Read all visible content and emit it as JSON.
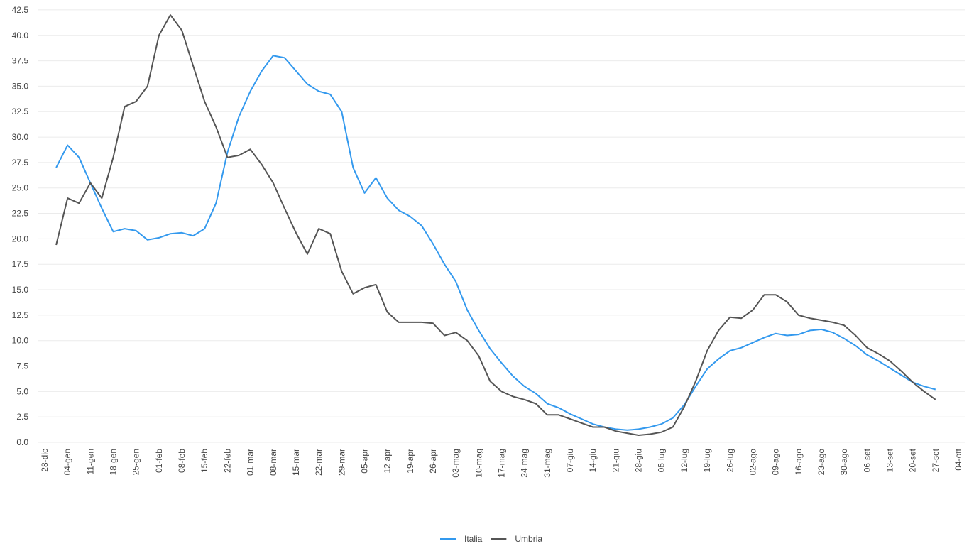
{
  "chart_data": {
    "type": "line",
    "categories": [
      "28-dic",
      null,
      "04-gen",
      null,
      "11-gen",
      null,
      "18-gen",
      null,
      "25-gen",
      null,
      "01-feb",
      null,
      "08-feb",
      null,
      "15-feb",
      null,
      "22-feb",
      null,
      "01-mar",
      null,
      "08-mar",
      null,
      "15-mar",
      null,
      "22-mar",
      null,
      "29-mar",
      null,
      "05-apr",
      null,
      "12-apr",
      null,
      "19-apr",
      null,
      "26-apr",
      null,
      "03-mag",
      null,
      "10-mag",
      null,
      "17-mag",
      null,
      "24-mag",
      null,
      "31-mag",
      null,
      "07-giu",
      null,
      "14-giu",
      null,
      "21-giu",
      null,
      "28-giu",
      null,
      "05-lug",
      null,
      "12-lug",
      null,
      "19-lug",
      null,
      "26-lug",
      null,
      "02-ago",
      null,
      "09-ago",
      null,
      "16-ago",
      null,
      "23-ago",
      null,
      "30-ago",
      null,
      "06-set",
      null,
      "13-set",
      null,
      "20-set",
      null,
      "27-set",
      null,
      "04-ott"
    ],
    "series": [
      {
        "name": "Italia",
        "color": "#3399ee",
        "values": [
          null,
          27,
          29.2,
          28,
          25.5,
          23,
          20.7,
          21,
          20.8,
          19.9,
          20.1,
          20.5,
          20.6,
          20.3,
          21,
          23.5,
          28.5,
          32,
          34.5,
          36.5,
          38,
          37.8,
          36.5,
          35.2,
          34.5,
          34.2,
          32.5,
          27,
          24.5,
          26,
          24,
          22.8,
          22.2,
          21.3,
          19.5,
          17.5,
          15.8,
          13,
          11,
          9.2,
          7.8,
          6.5,
          5.5,
          4.8,
          3.8,
          3.4,
          2.8,
          2.3,
          1.8,
          1.5,
          1.3,
          1.2,
          1.3,
          1.5,
          1.8,
          2.4,
          3.7,
          5.5,
          7.2,
          8.2,
          9,
          9.3,
          9.8,
          10.3,
          10.7,
          10.5,
          10.6,
          11,
          11.1,
          10.8,
          10.2,
          9.5,
          8.6,
          8,
          7.3,
          6.6,
          5.9,
          5.5,
          5.2,
          null,
          null
        ]
      },
      {
        "name": "Umbria",
        "color": "#555555",
        "values": [
          null,
          19.4,
          24,
          23.5,
          25.5,
          24,
          28,
          33,
          33.5,
          35,
          40,
          42,
          40.5,
          37,
          33.5,
          31,
          28,
          28.2,
          28.8,
          27.3,
          25.5,
          23,
          20.6,
          18.5,
          21,
          20.5,
          16.8,
          14.6,
          15.2,
          15.5,
          12.8,
          11.8,
          11.8,
          11.8,
          11.7,
          10.5,
          10.8,
          10,
          8.5,
          6,
          5,
          4.5,
          4.2,
          3.8,
          2.7,
          2.7,
          2.3,
          1.9,
          1.5,
          1.5,
          1.1,
          0.9,
          0.7,
          0.8,
          1,
          1.5,
          3.5,
          6,
          9,
          11,
          12.3,
          12.2,
          13,
          14.5,
          14.5,
          13.8,
          12.5,
          12.2,
          12,
          11.8,
          11.5,
          10.5,
          9.3,
          8.7,
          8,
          7,
          5.9,
          5,
          4.2,
          null,
          null
        ]
      }
    ],
    "ylim": [
      -1.2,
      42.9
    ],
    "yticks": [
      {
        "value": 0,
        "label": "0.0"
      },
      2.5,
      {
        "value": 5,
        "label": "5.0"
      },
      7.5,
      {
        "value": 10,
        "label": "10.0"
      },
      12.5,
      {
        "value": 15,
        "label": "15.0"
      },
      17.5,
      {
        "value": 20,
        "label": "20.0"
      },
      22.5,
      {
        "value": 25,
        "label": "25.0"
      },
      27.5,
      {
        "value": 30,
        "label": "30.0"
      },
      32.5,
      {
        "value": 35,
        "label": "35.0"
      },
      37.5,
      {
        "value": 40,
        "label": "40.0"
      },
      42.5
    ],
    "grid": true,
    "legend": "bottom"
  }
}
